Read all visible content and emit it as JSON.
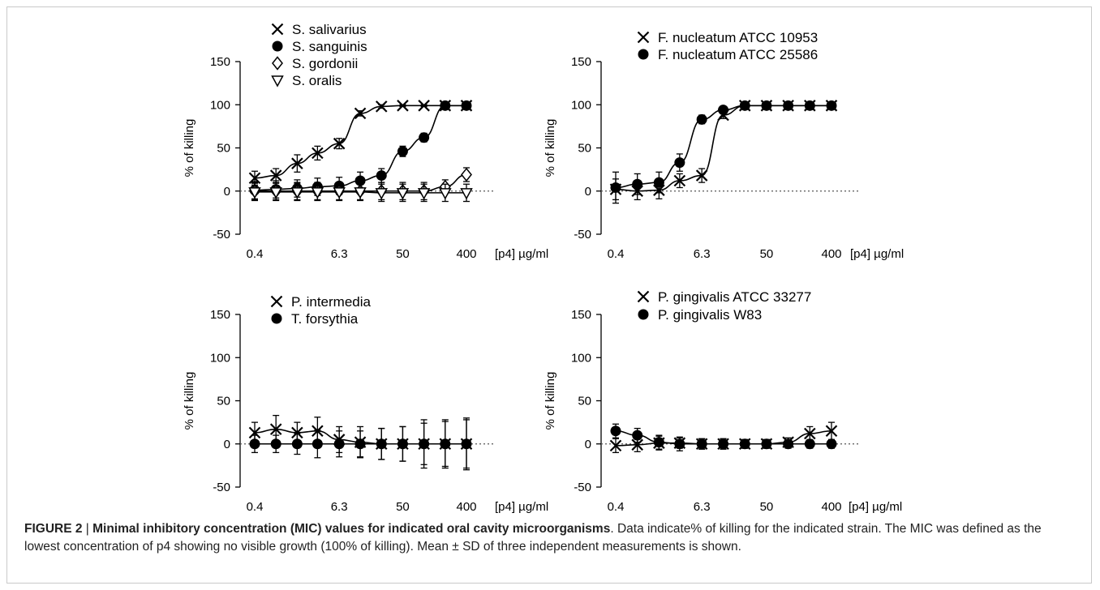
{
  "chart_data": [
    {
      "type": "scatter",
      "xlabel": "[p4] µg/ml",
      "ylabel": "% of killing",
      "x_scale": "log2",
      "x_tick_labels": [
        "0.4",
        "6.3",
        "50",
        "400"
      ],
      "ylim": [
        -50,
        150
      ],
      "y_ticks": [
        -50,
        0,
        50,
        100,
        150
      ],
      "legend_position": "top-left",
      "series": [
        {
          "name": "S. salivarius",
          "marker": "x",
          "x": [
            0.4,
            0.8,
            1.6,
            3.1,
            6.3,
            12.5,
            25,
            50,
            100,
            200,
            400
          ],
          "y": [
            15,
            18,
            32,
            44,
            55,
            90,
            98,
            99,
            99,
            99,
            99
          ],
          "err": [
            8,
            8,
            10,
            8,
            6,
            3,
            2,
            1,
            1,
            1,
            1
          ]
        },
        {
          "name": "S. sanguinis",
          "marker": "circle",
          "x": [
            0.4,
            0.8,
            1.6,
            3.1,
            6.3,
            12.5,
            25,
            50,
            100,
            200,
            400
          ],
          "y": [
            1,
            2,
            3,
            5,
            6,
            12,
            18,
            46,
            62,
            99,
            99
          ],
          "err": [
            10,
            10,
            10,
            10,
            10,
            10,
            8,
            6,
            5,
            2,
            2
          ]
        },
        {
          "name": "S. gordonii",
          "marker": "diamond",
          "x": [
            0.4,
            0.8,
            1.6,
            3.1,
            6.3,
            12.5,
            25,
            50,
            100,
            200,
            400
          ],
          "y": [
            0,
            0,
            0,
            0,
            0,
            0,
            0,
            0,
            0,
            5,
            19
          ],
          "err": [
            10,
            10,
            10,
            10,
            10,
            10,
            10,
            10,
            10,
            8,
            8
          ]
        },
        {
          "name": "S. oralis",
          "marker": "triangle-down",
          "x": [
            0.4,
            0.8,
            1.6,
            3.1,
            6.3,
            12.5,
            25,
            50,
            100,
            200,
            400
          ],
          "y": [
            -1,
            -1,
            -1,
            -1,
            -1,
            -1,
            -2,
            -2,
            -2,
            -2,
            -2
          ],
          "err": [
            10,
            10,
            10,
            10,
            10,
            10,
            10,
            10,
            10,
            10,
            10
          ]
        }
      ]
    },
    {
      "type": "scatter",
      "xlabel": "[p4] µg/ml",
      "ylabel": "% of killing",
      "x_scale": "log2",
      "x_tick_labels": [
        "0.4",
        "6.3",
        "50",
        "400"
      ],
      "ylim": [
        -50,
        150
      ],
      "y_ticks": [
        -50,
        0,
        50,
        100,
        150
      ],
      "legend_position": "top-center",
      "series": [
        {
          "name": "F. nucleatum ATCC 10953",
          "marker": "x",
          "x": [
            0.4,
            0.8,
            1.6,
            3.1,
            6.3,
            12.5,
            25,
            50,
            100,
            200,
            400
          ],
          "y": [
            2,
            0,
            1,
            12,
            18,
            88,
            99,
            99,
            99,
            99,
            99
          ],
          "err": [
            12,
            10,
            10,
            8,
            8,
            4,
            2,
            1,
            1,
            1,
            1
          ]
        },
        {
          "name": "F. nucleatum ATCC 25586",
          "marker": "circle",
          "x": [
            0.4,
            0.8,
            1.6,
            3.1,
            6.3,
            12.5,
            25,
            50,
            100,
            200,
            400
          ],
          "y": [
            4,
            8,
            10,
            33,
            83,
            94,
            99,
            99,
            99,
            99,
            99
          ],
          "err": [
            18,
            12,
            12,
            10,
            5,
            4,
            2,
            1,
            1,
            1,
            1
          ]
        }
      ]
    },
    {
      "type": "scatter",
      "xlabel": "[p4] µg/ml",
      "ylabel": "% of killing",
      "x_scale": "log2",
      "x_tick_labels": [
        "0.4",
        "6.3",
        "50",
        "400"
      ],
      "ylim": [
        -50,
        150
      ],
      "y_ticks": [
        -50,
        0,
        50,
        100,
        150
      ],
      "legend_position": "top-center",
      "series": [
        {
          "name": "P. intermedia",
          "marker": "x",
          "x": [
            0.4,
            0.8,
            1.6,
            3.1,
            6.3,
            12.5,
            25,
            50,
            100,
            200,
            400
          ],
          "y": [
            13,
            17,
            13,
            15,
            5,
            2,
            0,
            0,
            0,
            0,
            0
          ],
          "err": [
            12,
            16,
            12,
            16,
            15,
            18,
            18,
            20,
            28,
            28,
            30
          ]
        },
        {
          "name": "T. forsythia",
          "marker": "circle",
          "x": [
            0.4,
            0.8,
            1.6,
            3.1,
            6.3,
            12.5,
            25,
            50,
            100,
            200,
            400
          ],
          "y": [
            0,
            0,
            0,
            0,
            0,
            0,
            0,
            0,
            0,
            0,
            0
          ],
          "err": [
            10,
            10,
            12,
            16,
            15,
            15,
            18,
            20,
            24,
            26,
            28
          ]
        }
      ]
    },
    {
      "type": "scatter",
      "xlabel": "[p4] µg/ml",
      "ylabel": "% of killing",
      "x_scale": "log2",
      "x_tick_labels": [
        "0.4",
        "6.3",
        "50",
        "400"
      ],
      "ylim": [
        -50,
        150
      ],
      "y_ticks": [
        -50,
        0,
        50,
        100,
        150
      ],
      "legend_position": "top-center",
      "series": [
        {
          "name": "P. gingivalis ATCC 33277",
          "marker": "x",
          "x": [
            0.4,
            0.8,
            1.6,
            3.1,
            6.3,
            12.5,
            25,
            50,
            100,
            200,
            400
          ],
          "y": [
            -2,
            -1,
            1,
            1,
            0,
            0,
            0,
            0,
            2,
            12,
            15
          ],
          "err": [
            8,
            8,
            8,
            6,
            6,
            6,
            5,
            5,
            5,
            8,
            10
          ]
        },
        {
          "name": "P. gingivalis W83",
          "marker": "circle",
          "x": [
            0.4,
            0.8,
            1.6,
            3.1,
            6.3,
            12.5,
            25,
            50,
            100,
            200,
            400
          ],
          "y": [
            15,
            10,
            2,
            0,
            0,
            0,
            0,
            0,
            0,
            0,
            0
          ],
          "err": [
            8,
            8,
            8,
            8,
            6,
            6,
            5,
            5,
            5,
            5,
            5
          ]
        }
      ]
    }
  ],
  "caption": {
    "label": "FIGURE 2",
    "separator": " | ",
    "title": "Minimal inhibitory concentration (MIC) values for indicated oral cavity microorganisms",
    "text": ". Data indicate% of killing for the indicated strain. The MIC was defined as the lowest concentration of p4 showing no visible growth (100% of killing). Mean ± SD of three independent measurements is shown."
  }
}
